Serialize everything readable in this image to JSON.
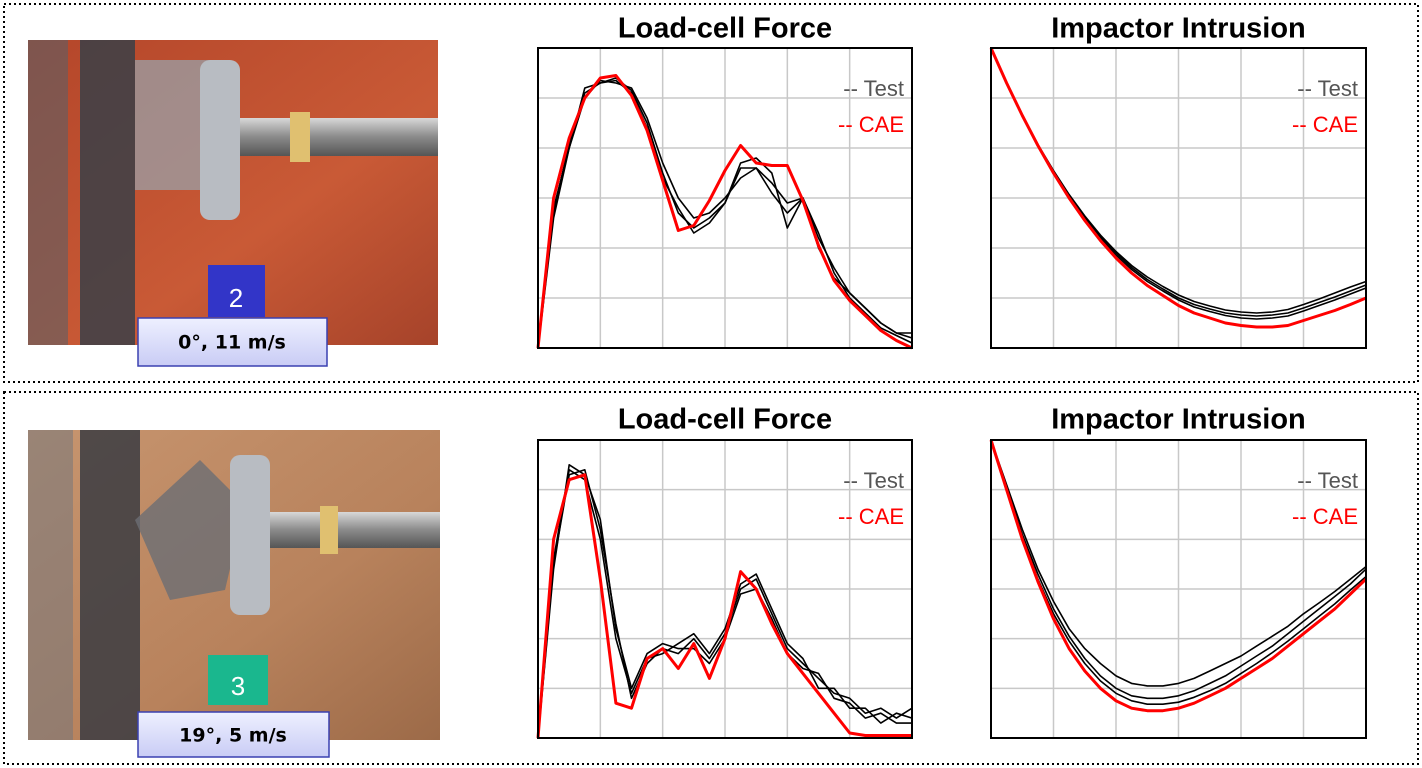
{
  "panels": [
    {
      "badge": "2",
      "caption": "0°, 11 m/s"
    },
    {
      "badge": "3",
      "caption": "19°, 5 m/s"
    }
  ],
  "chart_data": [
    {
      "type": "line",
      "title": "Load-cell Force",
      "grid": true,
      "legend": "upper right",
      "x": [
        0,
        0.25,
        0.5,
        0.75,
        1,
        1.25,
        1.5,
        1.75,
        2,
        2.25,
        2.5,
        2.75,
        3,
        3.25,
        3.5,
        3.75,
        4,
        4.25,
        4.5,
        4.75,
        5,
        5.25,
        5.5,
        5.75,
        6
      ],
      "xlim": [
        0,
        6
      ],
      "ylim": [
        0,
        6
      ],
      "xticks": [
        0,
        1,
        2,
        3,
        4,
        5,
        6
      ],
      "yticks": [
        0,
        1,
        2,
        3,
        4,
        5,
        6
      ],
      "series": [
        {
          "name": "-- Test",
          "color": "#000000",
          "values": [
            0,
            2.6,
            4.0,
            5.0,
            5.35,
            5.3,
            5.2,
            4.6,
            3.7,
            3.0,
            2.6,
            2.7,
            3.0,
            3.4,
            3.6,
            3.3,
            2.9,
            3.0,
            2.2,
            1.6,
            1.1,
            0.8,
            0.5,
            0.3,
            0.2
          ]
        },
        {
          "color": "#000000",
          "values": [
            0,
            2.7,
            4.1,
            5.1,
            5.3,
            5.35,
            5.1,
            4.4,
            3.4,
            2.8,
            2.3,
            2.5,
            2.9,
            3.7,
            3.8,
            3.5,
            2.4,
            3.0,
            2.3,
            1.5,
            1.0,
            0.7,
            0.4,
            0.25,
            0.1
          ]
        },
        {
          "color": "#000000",
          "values": [
            0,
            2.8,
            4.0,
            5.2,
            5.3,
            5.4,
            5.15,
            4.5,
            3.5,
            2.7,
            2.4,
            2.6,
            2.9,
            3.6,
            3.6,
            3.1,
            2.7,
            3.0,
            2.0,
            1.4,
            1.1,
            0.8,
            0.5,
            0.3,
            0.3
          ]
        },
        {
          "name": "-- CAE",
          "color": "#ff0000",
          "values": [
            0,
            3.0,
            4.2,
            5.0,
            5.4,
            5.45,
            5.05,
            4.35,
            3.35,
            2.35,
            2.45,
            2.95,
            3.55,
            4.05,
            3.7,
            3.65,
            3.65,
            2.95,
            2.05,
            1.35,
            0.95,
            0.65,
            0.35,
            0.15,
            0
          ]
        }
      ]
    },
    {
      "type": "line",
      "title": "Impactor Intrusion",
      "grid": true,
      "legend": "upper right",
      "x": [
        0,
        0.25,
        0.5,
        0.75,
        1,
        1.25,
        1.5,
        1.75,
        2,
        2.25,
        2.5,
        2.75,
        3,
        3.25,
        3.5,
        3.75,
        4,
        4.25,
        4.5,
        4.75,
        5,
        5.25,
        5.5,
        5.75,
        6
      ],
      "xlim": [
        0,
        6
      ],
      "ylim": [
        0,
        6
      ],
      "xticks": [
        0,
        1,
        2,
        3,
        4,
        5,
        6
      ],
      "yticks": [
        0,
        1,
        2,
        3,
        4,
        5,
        6
      ],
      "series": [
        {
          "name": "-- Test",
          "color": "#000000",
          "values": [
            6,
            5.3,
            4.65,
            4.05,
            3.52,
            3.03,
            2.6,
            2.2,
            1.86,
            1.57,
            1.33,
            1.14,
            0.96,
            0.82,
            0.73,
            0.65,
            0.6,
            0.58,
            0.6,
            0.64,
            0.74,
            0.85,
            0.96,
            1.08,
            1.2
          ]
        },
        {
          "color": "#000000",
          "values": [
            6,
            5.3,
            4.66,
            4.07,
            3.55,
            3.07,
            2.64,
            2.26,
            1.93,
            1.65,
            1.42,
            1.23,
            1.06,
            0.93,
            0.84,
            0.76,
            0.72,
            0.7,
            0.72,
            0.77,
            0.87,
            0.98,
            1.1,
            1.22,
            1.33
          ]
        },
        {
          "color": "#000000",
          "values": [
            6,
            5.3,
            4.65,
            4.06,
            3.53,
            3.05,
            2.62,
            2.23,
            1.9,
            1.61,
            1.37,
            1.18,
            1.0,
            0.87,
            0.78,
            0.7,
            0.66,
            0.64,
            0.66,
            0.7,
            0.8,
            0.91,
            1.02,
            1.14,
            1.26
          ]
        },
        {
          "name": "-- CAE",
          "color": "#ff0000",
          "values": [
            6,
            5.3,
            4.65,
            4.05,
            3.5,
            3.0,
            2.55,
            2.15,
            1.8,
            1.5,
            1.25,
            1.05,
            0.85,
            0.7,
            0.6,
            0.5,
            0.45,
            0.42,
            0.42,
            0.45,
            0.55,
            0.65,
            0.75,
            0.87,
            1.0
          ]
        }
      ]
    },
    {
      "type": "line",
      "title": "Load-cell Force",
      "grid": true,
      "legend": "upper right",
      "x": [
        0,
        0.25,
        0.5,
        0.75,
        1,
        1.25,
        1.5,
        1.75,
        2,
        2.25,
        2.5,
        2.75,
        3,
        3.25,
        3.5,
        3.75,
        4,
        4.25,
        4.5,
        4.75,
        5,
        5.25,
        5.5,
        5.75,
        6
      ],
      "xlim": [
        0,
        6
      ],
      "ylim": [
        0,
        6
      ],
      "xticks": [
        0,
        1,
        2,
        3,
        4,
        5,
        6
      ],
      "yticks": [
        0,
        1,
        2,
        3,
        4,
        5,
        6
      ],
      "series": [
        {
          "name": "-- Test",
          "color": "#000000",
          "values": [
            0,
            3.5,
            5.3,
            5.4,
            4.2,
            2.3,
            0.8,
            1.5,
            1.8,
            1.7,
            2.0,
            1.6,
            2.1,
            3.0,
            3.2,
            2.5,
            1.8,
            1.5,
            1.2,
            0.9,
            0.8,
            0.5,
            0.6,
            0.4,
            0.6
          ]
        },
        {
          "color": "#000000",
          "values": [
            0,
            3.6,
            5.4,
            5.2,
            4.0,
            2.0,
            0.9,
            1.6,
            1.7,
            1.9,
            2.1,
            1.7,
            2.2,
            3.1,
            3.3,
            2.6,
            1.9,
            1.6,
            1.0,
            1.0,
            0.6,
            0.6,
            0.3,
            0.5,
            0.4
          ]
        },
        {
          "color": "#000000",
          "values": [
            0,
            3.4,
            5.5,
            5.3,
            4.4,
            2.2,
            1.0,
            1.7,
            1.9,
            1.8,
            1.8,
            1.5,
            2.0,
            2.9,
            3.0,
            2.4,
            1.7,
            1.4,
            1.3,
            0.8,
            0.7,
            0.4,
            0.5,
            0.3,
            0.3
          ]
        },
        {
          "name": "-- CAE",
          "color": "#ff0000",
          "values": [
            0,
            4.0,
            5.2,
            5.3,
            3.2,
            0.7,
            0.6,
            1.6,
            1.8,
            1.4,
            1.9,
            1.2,
            2.0,
            3.35,
            3.0,
            2.3,
            1.7,
            1.3,
            0.9,
            0.5,
            0.1,
            0.05,
            0.05,
            0.05,
            0.05
          ]
        }
      ]
    },
    {
      "type": "line",
      "title": "Impactor Intrusion",
      "grid": true,
      "legend": "upper right",
      "x": [
        0,
        0.25,
        0.5,
        0.75,
        1,
        1.25,
        1.5,
        1.75,
        2,
        2.25,
        2.5,
        2.75,
        3,
        3.25,
        3.5,
        3.75,
        4,
        4.25,
        4.5,
        4.75,
        5,
        5.25,
        5.5,
        5.75,
        6
      ],
      "xlim": [
        0,
        6
      ],
      "ylim": [
        0,
        6
      ],
      "xticks": [
        0,
        1,
        2,
        3,
        4,
        5,
        6
      ],
      "yticks": [
        0,
        1,
        2,
        3,
        4,
        5,
        6
      ],
      "series": [
        {
          "name": "-- Test",
          "color": "#000000",
          "values": [
            6,
            5.05,
            4.1,
            3.3,
            2.6,
            2.05,
            1.6,
            1.25,
            1.0,
            0.85,
            0.8,
            0.8,
            0.85,
            0.95,
            1.1,
            1.25,
            1.45,
            1.65,
            1.85,
            2.1,
            2.35,
            2.6,
            2.85,
            3.1,
            3.4
          ]
        },
        {
          "color": "#000000",
          "values": [
            6,
            5.1,
            4.2,
            3.4,
            2.75,
            2.2,
            1.8,
            1.5,
            1.25,
            1.1,
            1.05,
            1.05,
            1.1,
            1.2,
            1.35,
            1.5,
            1.65,
            1.85,
            2.05,
            2.25,
            2.5,
            2.72,
            2.95,
            3.2,
            3.45
          ]
        },
        {
          "color": "#000000",
          "values": [
            6,
            5.0,
            4.05,
            3.2,
            2.5,
            1.95,
            1.5,
            1.15,
            0.9,
            0.75,
            0.68,
            0.68,
            0.72,
            0.82,
            0.95,
            1.1,
            1.3,
            1.5,
            1.72,
            1.95,
            2.2,
            2.45,
            2.7,
            2.98,
            3.25
          ]
        },
        {
          "name": "-- CAE",
          "color": "#ff0000",
          "values": [
            6,
            5.0,
            4.0,
            3.15,
            2.4,
            1.8,
            1.35,
            1.0,
            0.75,
            0.6,
            0.55,
            0.55,
            0.6,
            0.7,
            0.85,
            1.0,
            1.2,
            1.4,
            1.6,
            1.85,
            2.1,
            2.35,
            2.6,
            2.9,
            3.2
          ]
        }
      ]
    }
  ]
}
